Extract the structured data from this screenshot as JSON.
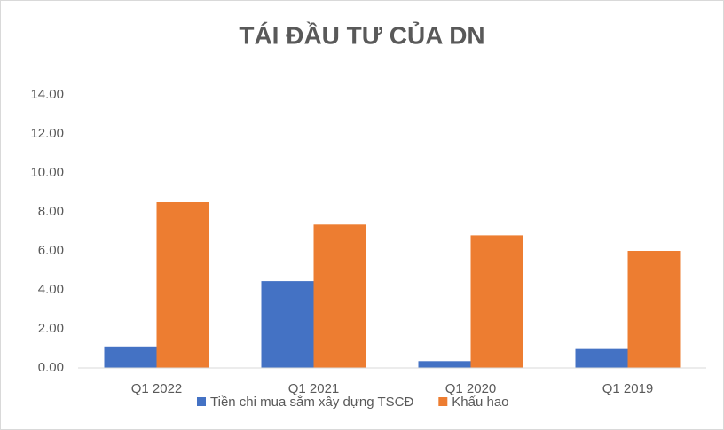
{
  "chart_data": {
    "type": "bar",
    "title": "TÁI ĐẦU TƯ CỦA DN",
    "categories": [
      "Q1 2022",
      "Q1 2021",
      "Q1 2020",
      "Q1 2019"
    ],
    "series": [
      {
        "name": "Tiền chi mua sắm xây dựng TSCĐ",
        "color": "#4472c4",
        "values": [
          1.1,
          4.45,
          0.35,
          0.97
        ]
      },
      {
        "name": "Khấu hao",
        "color": "#ed7d31",
        "values": [
          8.5,
          7.35,
          6.8,
          6.0
        ]
      }
    ],
    "ylim": [
      0,
      14
    ],
    "yticks": [
      {
        "value": 0,
        "label": "0.00"
      },
      {
        "value": 2,
        "label": "2.00"
      },
      {
        "value": 4,
        "label": "4.00"
      },
      {
        "value": 6,
        "label": "6.00"
      },
      {
        "value": 8,
        "label": "8.00"
      },
      {
        "value": 10,
        "label": "10.00"
      },
      {
        "value": 12,
        "label": "12.00"
      },
      {
        "value": 14,
        "label": "14.00"
      }
    ],
    "grid": false,
    "legend": "bottom"
  }
}
